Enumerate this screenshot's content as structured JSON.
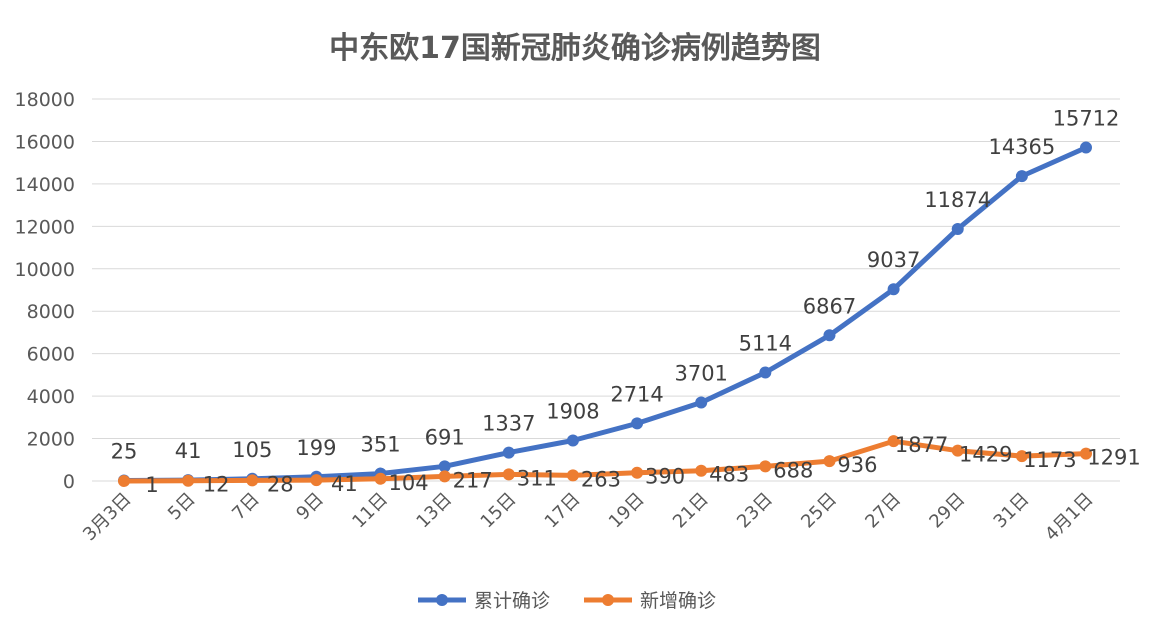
{
  "chart_data": {
    "type": "line",
    "title": "中东欧17国新冠肺炎确诊病例趋势图",
    "xlabel": "",
    "ylabel": "",
    "ylim": [
      0,
      18000
    ],
    "yticks": [
      "0",
      "2000",
      "4000",
      "6000",
      "8000",
      "10000",
      "12000",
      "14000",
      "16000",
      "18000"
    ],
    "categories": [
      "3月3日",
      "5日",
      "7日",
      "9日",
      "11日",
      "13日",
      "15日",
      "17日",
      "19日",
      "21日",
      "23日",
      "25日",
      "27日",
      "29日",
      "31日",
      "4月1日"
    ],
    "grid": true,
    "legend_position": "bottom",
    "series": [
      {
        "name": "累计确诊",
        "color": "#4472c4",
        "values": [
          25,
          41,
          105,
          199,
          351,
          691,
          1337,
          1908,
          2714,
          3701,
          5114,
          6867,
          9037,
          11874,
          14365,
          15712
        ],
        "labels": [
          "25",
          "41",
          "105",
          "199",
          "351",
          "691",
          "1337",
          "1908",
          "2714",
          "3701",
          "5114",
          "6867",
          "9037",
          "11874",
          "14365",
          "15712"
        ]
      },
      {
        "name": "新增确诊",
        "color": "#ed7d31",
        "values": [
          1,
          12,
          28,
          41,
          104,
          217,
          311,
          263,
          390,
          483,
          688,
          936,
          1877,
          1429,
          1173,
          1291
        ],
        "labels": [
          "1",
          "12",
          "28",
          "41",
          "104",
          "217",
          "311",
          "263",
          "390",
          "483",
          "688",
          "936",
          "1877",
          "1429",
          "1173",
          "1291"
        ]
      }
    ]
  }
}
